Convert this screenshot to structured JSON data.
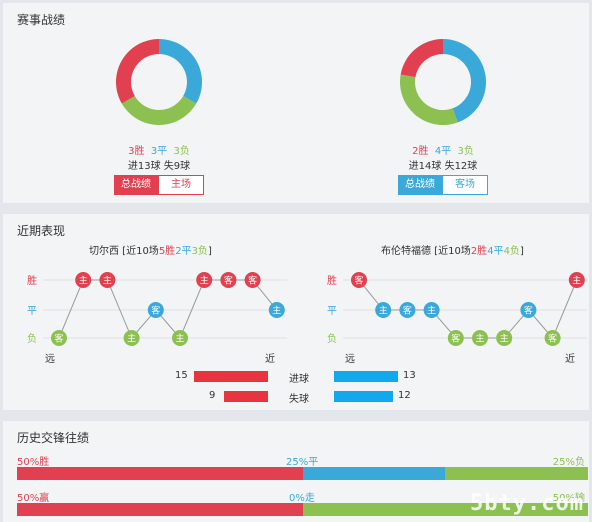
{
  "sections": {
    "record_title": "赛事战绩",
    "recent_title": "近期表现",
    "history_title": "历史交锋往绩"
  },
  "colors": {
    "win": "#e0404f",
    "draw": "#3aa8d8",
    "lose": "#8cc152"
  },
  "home": {
    "record": {
      "wins": 3,
      "draws": 3,
      "losses": 3,
      "wins_label": "3胜",
      "draws_label": "3平",
      "losses_label": "3负"
    },
    "goals_line": "进13球  失9球",
    "btn_total": "总战绩",
    "btn_venue": "主场"
  },
  "away": {
    "record": {
      "wins": 2,
      "draws": 4,
      "losses": 3,
      "wins_label": "2胜",
      "draws_label": "4平",
      "losses_label": "3负"
    },
    "goals_line": "进14球  失12球",
    "btn_total": "总战绩",
    "btn_venue": "客场"
  },
  "recent": {
    "row_labels": [
      "胜",
      "平",
      "负"
    ],
    "far_label": "远",
    "near_label": "近",
    "home": {
      "name": "切尔西",
      "summary_prefix": " [近10场",
      "w": "5胜",
      "d": "2平",
      "l": "3负",
      "summary_suffix": "]",
      "matches": [
        {
          "res": "L",
          "venue": "客"
        },
        {
          "res": "W",
          "venue": "主"
        },
        {
          "res": "W",
          "venue": "主"
        },
        {
          "res": "L",
          "venue": "主"
        },
        {
          "res": "D",
          "venue": "客"
        },
        {
          "res": "L",
          "venue": "主"
        },
        {
          "res": "W",
          "venue": "主"
        },
        {
          "res": "W",
          "venue": "客"
        },
        {
          "res": "W",
          "venue": "客"
        },
        {
          "res": "D",
          "venue": "主"
        }
      ]
    },
    "away": {
      "name": "布伦特福德",
      "summary_prefix": " [近10场",
      "w": "2胜",
      "d": "4平",
      "l": "4负",
      "summary_suffix": "]",
      "matches": [
        {
          "res": "W",
          "venue": "客"
        },
        {
          "res": "D",
          "venue": "主"
        },
        {
          "res": "D",
          "venue": "客"
        },
        {
          "res": "D",
          "venue": "主"
        },
        {
          "res": "L",
          "venue": "客"
        },
        {
          "res": "L",
          "venue": "主"
        },
        {
          "res": "L",
          "venue": "主"
        },
        {
          "res": "D",
          "venue": "客"
        },
        {
          "res": "L",
          "venue": "客"
        },
        {
          "res": "W",
          "venue": "主"
        }
      ]
    },
    "goals": {
      "scored_label": "进球",
      "conceded_label": "失球",
      "home_scored": 15,
      "home_conceded": 9,
      "away_scored": 13,
      "away_conceded": 12
    }
  },
  "history": {
    "row1": {
      "left": "50%胜",
      "mid": "25%平",
      "right": "25%负",
      "win": 50,
      "draw": 25,
      "lose": 25
    },
    "row2": {
      "left": "50%赢",
      "mid": "0%走",
      "right": "50%输",
      "win": 50,
      "draw": 0,
      "lose": 50
    }
  },
  "watermark": "5btycom"
}
